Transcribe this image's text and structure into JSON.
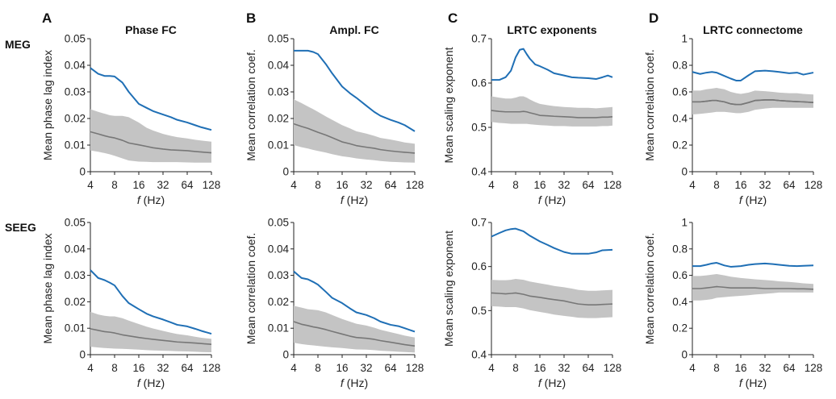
{
  "figure": {
    "panel_letters": [
      "A",
      "B",
      "C",
      "D"
    ],
    "row_labels": [
      "MEG",
      "SEEG"
    ],
    "x_axis_label_italic": "f",
    "x_axis_label_rest": " (Hz)",
    "colors": {
      "observed": "#1f6fb5",
      "null_band": "#c4c4c4",
      "null_mean": "#777777"
    }
  },
  "chart_data": [
    {
      "type": "line",
      "panel": "A",
      "row": "MEG",
      "title": "Phase FC",
      "xlabel": "f (Hz)",
      "ylabel": "Mean phase lag index",
      "x_scale": "log2",
      "x": [
        4,
        5,
        6,
        7,
        8,
        10,
        12,
        16,
        20,
        24,
        32,
        40,
        48,
        64,
        80,
        96,
        128
      ],
      "xticks": [
        "4",
        "8",
        "16",
        "32",
        "64",
        "128"
      ],
      "yticks": [
        "0",
        "0.01",
        "0.02",
        "0.03",
        "0.04",
        "0.05"
      ],
      "ylim": [
        0,
        0.05
      ],
      "series": [
        {
          "values": [
            0.039,
            0.0368,
            0.036,
            0.036,
            0.0358,
            0.0335,
            0.03,
            0.0255,
            0.024,
            0.0228,
            0.0215,
            0.0205,
            0.0195,
            0.0185,
            0.0175,
            0.0167,
            0.0157
          ]
        },
        {
          "values": [
            0.015,
            0.0142,
            0.0135,
            0.013,
            0.0127,
            0.0118,
            0.0108,
            0.0101,
            0.0095,
            0.009,
            0.0085,
            0.0082,
            0.0081,
            0.0079,
            0.0076,
            0.0074,
            0.0071
          ],
          "lower": [
            0.008,
            0.0075,
            0.007,
            0.0065,
            0.006,
            0.005,
            0.0042,
            0.0038,
            0.0037,
            0.0036,
            0.0036,
            0.0036,
            0.0036,
            0.0035,
            0.0034,
            0.0034,
            0.0034
          ],
          "upper": [
            0.0235,
            0.0225,
            0.0218,
            0.0212,
            0.021,
            0.021,
            0.0205,
            0.0185,
            0.0165,
            0.0155,
            0.0142,
            0.0135,
            0.013,
            0.0125,
            0.012,
            0.0117,
            0.0113
          ]
        }
      ]
    },
    {
      "type": "line",
      "panel": "B",
      "row": "MEG",
      "title": "Ampl. FC",
      "xlabel": "f (Hz)",
      "ylabel": "Mean correlation coef.",
      "x_scale": "log2",
      "x": [
        4,
        5,
        6,
        7,
        8,
        10,
        12,
        16,
        20,
        24,
        32,
        40,
        48,
        64,
        80,
        96,
        128
      ],
      "xticks": [
        "4",
        "8",
        "16",
        "32",
        "64",
        "128"
      ],
      "yticks": [
        "0",
        "0.01",
        "0.02",
        "0.03",
        "0.04",
        "0.05"
      ],
      "ylim": [
        0,
        0.05
      ],
      "series": [
        {
          "values": [
            0.0455,
            0.0455,
            0.0455,
            0.045,
            0.0442,
            0.0405,
            0.037,
            0.032,
            0.0295,
            0.0278,
            0.0248,
            0.0225,
            0.021,
            0.0195,
            0.0185,
            0.0175,
            0.0152
          ]
        },
        {
          "values": [
            0.018,
            0.017,
            0.0163,
            0.0155,
            0.0148,
            0.0138,
            0.0128,
            0.0112,
            0.0105,
            0.0098,
            0.0092,
            0.0088,
            0.0083,
            0.0078,
            0.0075,
            0.0073,
            0.007
          ],
          "lower": [
            0.01,
            0.0092,
            0.0087,
            0.0082,
            0.0078,
            0.0072,
            0.0066,
            0.0058,
            0.0054,
            0.005,
            0.0046,
            0.0043,
            0.004,
            0.0037,
            0.0036,
            0.0035,
            0.0034
          ],
          "upper": [
            0.0272,
            0.0258,
            0.0245,
            0.0235,
            0.0225,
            0.0208,
            0.0195,
            0.0175,
            0.0163,
            0.0152,
            0.0143,
            0.0135,
            0.0127,
            0.0121,
            0.0115,
            0.011,
            0.0105
          ]
        }
      ]
    },
    {
      "type": "line",
      "panel": "C",
      "row": "MEG",
      "title": "LRTC exponents",
      "xlabel": "f (Hz)",
      "ylabel": "Mean scaling exponent",
      "x_scale": "log2",
      "x": [
        4,
        5,
        6,
        7,
        8,
        9,
        10,
        11,
        12,
        14,
        16,
        20,
        24,
        32,
        40,
        48,
        64,
        80,
        96,
        112,
        128
      ],
      "xticks": [
        "4",
        "8",
        "16",
        "32",
        "64",
        "128"
      ],
      "yticks": [
        "0.4",
        "0.5",
        "0.6",
        "0.7"
      ],
      "ylim": [
        0.4,
        0.7
      ],
      "series": [
        {
          "values": [
            0.607,
            0.607,
            0.613,
            0.628,
            0.658,
            0.675,
            0.677,
            0.665,
            0.655,
            0.642,
            0.638,
            0.63,
            0.622,
            0.617,
            0.613,
            0.612,
            0.611,
            0.609,
            0.613,
            0.617,
            0.613
          ]
        },
        {
          "values": [
            0.538,
            0.536,
            0.535,
            0.535,
            0.535,
            0.535,
            0.536,
            0.535,
            0.533,
            0.53,
            0.527,
            0.526,
            0.525,
            0.524,
            0.523,
            0.522,
            0.522,
            0.522,
            0.523,
            0.523,
            0.524
          ],
          "lower": [
            0.512,
            0.51,
            0.509,
            0.508,
            0.508,
            0.508,
            0.508,
            0.508,
            0.507,
            0.506,
            0.505,
            0.504,
            0.503,
            0.503,
            0.502,
            0.502,
            0.502,
            0.502,
            0.503,
            0.503,
            0.504
          ],
          "upper": [
            0.57,
            0.567,
            0.565,
            0.565,
            0.567,
            0.57,
            0.57,
            0.567,
            0.563,
            0.557,
            0.553,
            0.55,
            0.548,
            0.546,
            0.545,
            0.544,
            0.544,
            0.543,
            0.544,
            0.545,
            0.546
          ]
        }
      ]
    },
    {
      "type": "line",
      "panel": "D",
      "row": "MEG",
      "title": "LRTC connectome",
      "xlabel": "f (Hz)",
      "ylabel": "Mean correlation coef.",
      "x_scale": "log2",
      "x": [
        4,
        5,
        6,
        7,
        8,
        10,
        12,
        14,
        16,
        20,
        24,
        32,
        40,
        48,
        64,
        80,
        96,
        128
      ],
      "xticks": [
        "4",
        "8",
        "16",
        "32",
        "64",
        "128"
      ],
      "yticks": [
        "0",
        "0.2",
        "0.4",
        "0.6",
        "0.8",
        "1"
      ],
      "ylim": [
        0,
        1
      ],
      "series": [
        {
          "values": [
            0.75,
            0.735,
            0.745,
            0.75,
            0.745,
            0.72,
            0.7,
            0.685,
            0.685,
            0.725,
            0.755,
            0.76,
            0.755,
            0.75,
            0.74,
            0.745,
            0.73,
            0.745
          ]
        },
        {
          "values": [
            0.525,
            0.525,
            0.53,
            0.535,
            0.535,
            0.525,
            0.51,
            0.505,
            0.505,
            0.52,
            0.535,
            0.54,
            0.54,
            0.535,
            0.53,
            0.527,
            0.525,
            0.52
          ]
        },
        {
          "values": [
            0.525,
            0.525,
            0.53,
            0.535,
            0.535,
            0.525,
            0.51,
            0.505,
            0.505,
            0.52,
            0.535,
            0.54,
            0.54,
            0.535,
            0.53,
            0.527,
            0.525,
            0.52
          ],
          "lower": [
            0.43,
            0.435,
            0.44,
            0.445,
            0.45,
            0.45,
            0.445,
            0.44,
            0.44,
            0.45,
            0.465,
            0.475,
            0.48,
            0.48,
            0.48,
            0.48,
            0.48,
            0.48
          ],
          "upper": [
            0.61,
            0.61,
            0.62,
            0.625,
            0.63,
            0.62,
            0.6,
            0.59,
            0.585,
            0.595,
            0.61,
            0.605,
            0.6,
            0.595,
            0.59,
            0.59,
            0.585,
            0.58
          ]
        }
      ]
    },
    {
      "type": "line",
      "panel": "A",
      "row": "SEEG",
      "title": "",
      "xlabel": "f (Hz)",
      "ylabel": "Mean phase lag index",
      "x_scale": "log2",
      "x": [
        4,
        5,
        6,
        7,
        8,
        10,
        12,
        16,
        20,
        24,
        32,
        40,
        48,
        64,
        80,
        96,
        128
      ],
      "xticks": [
        "4",
        "8",
        "16",
        "32",
        "64",
        "128"
      ],
      "yticks": [
        "0",
        "0.01",
        "0.02",
        "0.03",
        "0.04",
        "0.05"
      ],
      "ylim": [
        0,
        0.05
      ],
      "series": [
        {
          "values": [
            0.032,
            0.029,
            0.0282,
            0.0272,
            0.0262,
            0.0222,
            0.0195,
            0.0172,
            0.0155,
            0.0145,
            0.0133,
            0.0122,
            0.0113,
            0.0107,
            0.0098,
            0.009,
            0.0079
          ]
        },
        {
          "values": [
            0.0098,
            0.0092,
            0.0087,
            0.0085,
            0.0082,
            0.0075,
            0.0071,
            0.0065,
            0.0061,
            0.0058,
            0.0054,
            0.0051,
            0.0048,
            0.0046,
            0.0044,
            0.0042,
            0.0039
          ],
          "lower": [
            0.003,
            0.0027,
            0.0025,
            0.0024,
            0.0023,
            0.0022,
            0.0021,
            0.0019,
            0.0017,
            0.0016,
            0.0015,
            0.0014,
            0.0013,
            0.0012,
            0.0011,
            0.001,
            0.0009
          ],
          "upper": [
            0.0162,
            0.0152,
            0.0147,
            0.0145,
            0.0145,
            0.0138,
            0.0129,
            0.0116,
            0.0106,
            0.0099,
            0.009,
            0.0083,
            0.0078,
            0.0073,
            0.0068,
            0.0064,
            0.006
          ]
        }
      ]
    },
    {
      "type": "line",
      "panel": "B",
      "row": "SEEG",
      "title": "",
      "xlabel": "f (Hz)",
      "ylabel": "Mean correlation coef.",
      "x_scale": "log2",
      "x": [
        4,
        5,
        6,
        7,
        8,
        10,
        12,
        16,
        20,
        24,
        32,
        40,
        48,
        64,
        80,
        96,
        128
      ],
      "xticks": [
        "4",
        "8",
        "16",
        "32",
        "64",
        "128"
      ],
      "yticks": [
        "0",
        "0.01",
        "0.02",
        "0.03",
        "0.04",
        "0.05"
      ],
      "ylim": [
        0,
        0.05
      ],
      "series": [
        {
          "values": [
            0.0315,
            0.029,
            0.0285,
            0.0275,
            0.0265,
            0.0238,
            0.0215,
            0.0195,
            0.0175,
            0.016,
            0.015,
            0.0138,
            0.0125,
            0.0113,
            0.0108,
            0.01,
            0.0087
          ]
        },
        {
          "values": [
            0.0125,
            0.0115,
            0.011,
            0.0105,
            0.0102,
            0.0095,
            0.0088,
            0.0078,
            0.007,
            0.0065,
            0.0062,
            0.0058,
            0.0053,
            0.0047,
            0.0042,
            0.0038,
            0.0033
          ],
          "lower": [
            0.0045,
            0.004,
            0.0037,
            0.0035,
            0.0033,
            0.003,
            0.0028,
            0.0025,
            0.0022,
            0.002,
            0.0019,
            0.0017,
            0.0015,
            0.0013,
            0.0011,
            0.001,
            0.0008
          ],
          "upper": [
            0.0185,
            0.0178,
            0.0172,
            0.017,
            0.0168,
            0.016,
            0.015,
            0.0135,
            0.0125,
            0.0117,
            0.011,
            0.0102,
            0.0094,
            0.0085,
            0.0078,
            0.0072,
            0.0065
          ]
        }
      ]
    },
    {
      "type": "line",
      "panel": "C",
      "row": "SEEG",
      "title": "",
      "xlabel": "f (Hz)",
      "ylabel": "Mean scaling exponent",
      "x_scale": "log2",
      "x": [
        4,
        5,
        6,
        7,
        8,
        10,
        12,
        16,
        20,
        24,
        32,
        40,
        48,
        64,
        80,
        96,
        128
      ],
      "xticks": [
        "4",
        "8",
        "16",
        "32",
        "64",
        "128"
      ],
      "yticks": [
        "0.4",
        "0.5",
        "0.6",
        "0.7"
      ],
      "ylim": [
        0.4,
        0.7
      ],
      "series": [
        {
          "values": [
            0.668,
            0.676,
            0.682,
            0.685,
            0.686,
            0.68,
            0.67,
            0.657,
            0.649,
            0.642,
            0.633,
            0.629,
            0.629,
            0.629,
            0.632,
            0.637,
            0.638
          ]
        },
        {
          "values": [
            0.54,
            0.539,
            0.538,
            0.539,
            0.54,
            0.537,
            0.533,
            0.53,
            0.527,
            0.525,
            0.522,
            0.518,
            0.515,
            0.513,
            0.513,
            0.514,
            0.515
          ],
          "lower": [
            0.51,
            0.509,
            0.508,
            0.508,
            0.508,
            0.505,
            0.501,
            0.497,
            0.494,
            0.491,
            0.488,
            0.486,
            0.484,
            0.483,
            0.483,
            0.484,
            0.485
          ],
          "upper": [
            0.57,
            0.569,
            0.569,
            0.57,
            0.572,
            0.57,
            0.566,
            0.562,
            0.559,
            0.556,
            0.553,
            0.55,
            0.547,
            0.545,
            0.545,
            0.546,
            0.547
          ]
        }
      ]
    },
    {
      "type": "line",
      "panel": "D",
      "row": "SEEG",
      "title": "",
      "xlabel": "f (Hz)",
      "ylabel": "Mean correlation coef.",
      "x_scale": "log2",
      "x": [
        4,
        5,
        6,
        7,
        8,
        10,
        12,
        16,
        20,
        24,
        32,
        40,
        48,
        64,
        80,
        96,
        128
      ],
      "xticks": [
        "4",
        "8",
        "16",
        "32",
        "64",
        "128"
      ],
      "yticks": [
        "0",
        "0.2",
        "0.4",
        "0.6",
        "0.8",
        "1"
      ],
      "ylim": [
        0,
        1
      ],
      "series": [
        {
          "values": [
            0.67,
            0.67,
            0.68,
            0.69,
            0.695,
            0.675,
            0.665,
            0.67,
            0.68,
            0.685,
            0.69,
            0.685,
            0.68,
            0.672,
            0.67,
            0.672,
            0.675
          ]
        },
        {
          "values": [
            0.5,
            0.5,
            0.505,
            0.51,
            0.515,
            0.51,
            0.505,
            0.505,
            0.505,
            0.505,
            0.5,
            0.5,
            0.5,
            0.5,
            0.498,
            0.498,
            0.495
          ],
          "lower": [
            0.41,
            0.41,
            0.415,
            0.42,
            0.43,
            0.435,
            0.44,
            0.445,
            0.45,
            0.455,
            0.46,
            0.465,
            0.47,
            0.47,
            0.47,
            0.47,
            0.47
          ],
          "upper": [
            0.595,
            0.595,
            0.6,
            0.605,
            0.61,
            0.6,
            0.59,
            0.58,
            0.575,
            0.57,
            0.565,
            0.56,
            0.555,
            0.55,
            0.545,
            0.54,
            0.535
          ]
        }
      ]
    }
  ]
}
